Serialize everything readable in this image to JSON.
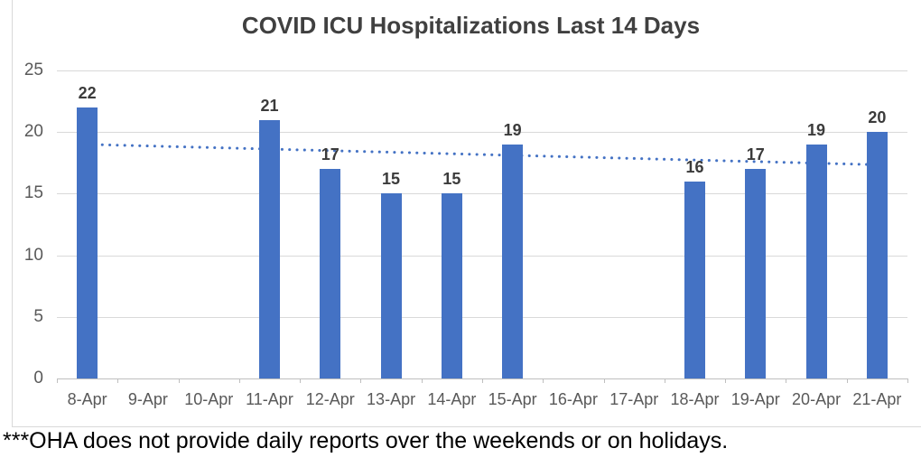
{
  "chart_data": {
    "type": "bar",
    "title": "COVID ICU Hospitalizations Last 14 Days",
    "categories": [
      "8-Apr",
      "9-Apr",
      "10-Apr",
      "11-Apr",
      "12-Apr",
      "13-Apr",
      "14-Apr",
      "15-Apr",
      "16-Apr",
      "17-Apr",
      "18-Apr",
      "19-Apr",
      "20-Apr",
      "21-Apr"
    ],
    "values": [
      22,
      null,
      null,
      21,
      17,
      15,
      15,
      19,
      null,
      null,
      16,
      17,
      19,
      20
    ],
    "data_labels_shown": true,
    "xlabel": "",
    "ylabel": "",
    "ylim": [
      0,
      25
    ],
    "yticks": [
      0,
      5,
      10,
      15,
      20,
      25
    ],
    "grid": true,
    "legend": "none",
    "trendline": {
      "type": "linear",
      "style": "dotted",
      "start_value": 19.0,
      "end_value": 17.35
    },
    "colors": {
      "bar": "#4472C4",
      "trendline": "#4472C4",
      "gridline": "#d9d9d9",
      "axis_line": "#bfbfbf",
      "title_text": "#404040",
      "data_label_text": "#3b3b3b",
      "tick_label_text": "#595959",
      "frame_border": "#d9d9d9"
    }
  },
  "footnote": "***OHA does not provide daily reports over the weekends or on holidays."
}
